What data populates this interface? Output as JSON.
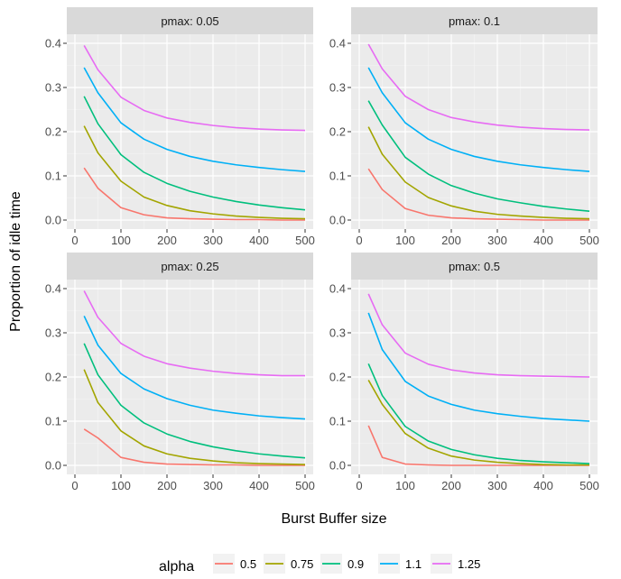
{
  "chart_data": {
    "type": "line",
    "xlabel": "Burst Buffer size",
    "ylabel": "Proportion of idle time",
    "xlim": [
      0,
      500
    ],
    "ylim": [
      0,
      0.4
    ],
    "xticks": [
      0,
      100,
      200,
      300,
      400,
      500
    ],
    "yticks": [
      0.0,
      0.1,
      0.2,
      0.3,
      0.4
    ],
    "xtick_labels": [
      "0",
      "100",
      "200",
      "300",
      "400",
      "500"
    ],
    "ytick_labels": [
      "0.0",
      "0.1",
      "0.2",
      "0.3",
      "0.4"
    ],
    "grid": true,
    "legend": {
      "title": "alpha",
      "position": "bottom",
      "entries": [
        "0.5",
        "0.75",
        "0.9",
        "1.1",
        "1.25"
      ],
      "colors": [
        "#F8766D",
        "#A3A500",
        "#00BF7D",
        "#00B0F6",
        "#E76BF3"
      ]
    },
    "x": [
      20,
      50,
      100,
      150,
      200,
      250,
      300,
      350,
      400,
      450,
      500
    ],
    "panels": [
      {
        "label": "pmax: 0.05",
        "series": [
          {
            "name": "0.5",
            "values": [
              0.118,
              0.072,
              0.028,
              0.012,
              0.005,
              0.003,
              0.002,
              0.001,
              0.001,
              0.0,
              0.0
            ]
          },
          {
            "name": "0.75",
            "values": [
              0.213,
              0.152,
              0.088,
              0.052,
              0.033,
              0.021,
              0.014,
              0.009,
              0.006,
              0.004,
              0.003
            ]
          },
          {
            "name": "0.9",
            "values": [
              0.28,
              0.218,
              0.148,
              0.108,
              0.083,
              0.065,
              0.052,
              0.042,
              0.034,
              0.028,
              0.023
            ]
          },
          {
            "name": "1.1",
            "values": [
              0.345,
              0.288,
              0.22,
              0.183,
              0.16,
              0.144,
              0.133,
              0.125,
              0.119,
              0.114,
              0.11
            ]
          },
          {
            "name": "1.25",
            "values": [
              0.395,
              0.34,
              0.278,
              0.248,
              0.231,
              0.221,
              0.214,
              0.209,
              0.206,
              0.204,
              0.203
            ]
          }
        ]
      },
      {
        "label": "pmax: 0.1",
        "series": [
          {
            "name": "0.5",
            "values": [
              0.116,
              0.069,
              0.026,
              0.011,
              0.005,
              0.003,
              0.002,
              0.001,
              0.0,
              0.0,
              0.0
            ]
          },
          {
            "name": "0.75",
            "values": [
              0.211,
              0.149,
              0.086,
              0.051,
              0.032,
              0.02,
              0.013,
              0.009,
              0.006,
              0.004,
              0.003
            ]
          },
          {
            "name": "0.9",
            "values": [
              0.27,
              0.215,
              0.142,
              0.104,
              0.078,
              0.061,
              0.048,
              0.039,
              0.031,
              0.025,
              0.02
            ]
          },
          {
            "name": "1.1",
            "values": [
              0.345,
              0.288,
              0.22,
              0.183,
              0.16,
              0.144,
              0.133,
              0.125,
              0.119,
              0.114,
              0.11
            ]
          },
          {
            "name": "1.25",
            "values": [
              0.398,
              0.342,
              0.28,
              0.25,
              0.232,
              0.222,
              0.215,
              0.21,
              0.207,
              0.205,
              0.204
            ]
          }
        ]
      },
      {
        "label": "pmax: 0.25",
        "series": [
          {
            "name": "0.5",
            "values": [
              0.082,
              0.062,
              0.018,
              0.007,
              0.003,
              0.002,
              0.001,
              0.001,
              0.0,
              0.0,
              0.0
            ]
          },
          {
            "name": "0.75",
            "values": [
              0.217,
              0.142,
              0.078,
              0.044,
              0.026,
              0.016,
              0.01,
              0.006,
              0.004,
              0.003,
              0.002
            ]
          },
          {
            "name": "0.9",
            "values": [
              0.276,
              0.205,
              0.136,
              0.096,
              0.071,
              0.054,
              0.042,
              0.033,
              0.026,
              0.021,
              0.017
            ]
          },
          {
            "name": "1.1",
            "values": [
              0.338,
              0.272,
              0.208,
              0.173,
              0.151,
              0.136,
              0.125,
              0.118,
              0.112,
              0.108,
              0.105
            ]
          },
          {
            "name": "1.25",
            "values": [
              0.395,
              0.335,
              0.276,
              0.247,
              0.23,
              0.22,
              0.213,
              0.208,
              0.205,
              0.203,
              0.203
            ]
          }
        ]
      },
      {
        "label": "pmax: 0.5",
        "series": [
          {
            "name": "0.5",
            "values": [
              0.09,
              0.018,
              0.003,
              0.001,
              0.0,
              0.0,
              0.0,
              0.0,
              0.0,
              0.0,
              0.0
            ]
          },
          {
            "name": "0.75",
            "values": [
              0.193,
              0.138,
              0.072,
              0.039,
              0.021,
              0.012,
              0.007,
              0.004,
              0.002,
              0.001,
              0.001
            ]
          },
          {
            "name": "0.9",
            "values": [
              0.23,
              0.158,
              0.088,
              0.055,
              0.036,
              0.024,
              0.016,
              0.011,
              0.008,
              0.006,
              0.004
            ]
          },
          {
            "name": "1.1",
            "values": [
              0.345,
              0.262,
              0.19,
              0.157,
              0.138,
              0.125,
              0.117,
              0.111,
              0.106,
              0.103,
              0.1
            ]
          },
          {
            "name": "1.25",
            "values": [
              0.388,
              0.318,
              0.254,
              0.229,
              0.216,
              0.209,
              0.205,
              0.203,
              0.202,
              0.201,
              0.2
            ]
          }
        ]
      }
    ]
  }
}
